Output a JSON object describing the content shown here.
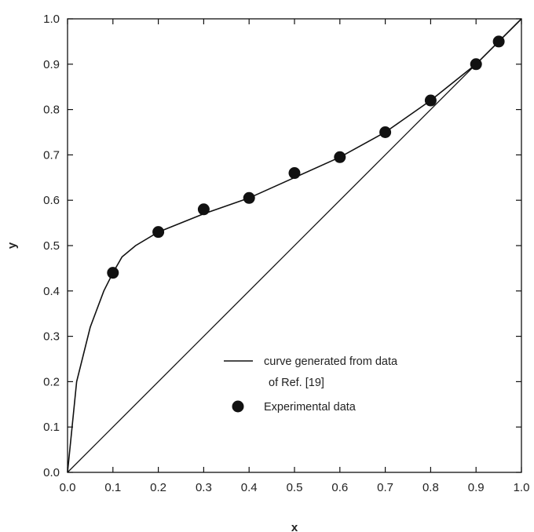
{
  "chart_data": {
    "type": "scatter",
    "xlabel": "x",
    "ylabel": "y",
    "xlim": [
      0,
      1
    ],
    "ylim": [
      0,
      1
    ],
    "xticks": [
      "0.0",
      "0.1",
      "0.2",
      "0.3",
      "0.4",
      "0.5",
      "0.6",
      "0.7",
      "0.8",
      "0.9",
      "1.0"
    ],
    "yticks": [
      "0.0",
      "0.1",
      "0.2",
      "0.3",
      "0.4",
      "0.5",
      "0.6",
      "0.7",
      "0.8",
      "0.9",
      "1.0"
    ],
    "grid": false,
    "legend_position": "bottom-right",
    "series": [
      {
        "name": "curve generated from data of Ref. [19]",
        "style": "line",
        "x": [
          0.0,
          0.01,
          0.02,
          0.05,
          0.08,
          0.1,
          0.12,
          0.15,
          0.2,
          0.3,
          0.4,
          0.5,
          0.6,
          0.7,
          0.8,
          0.9,
          0.95,
          1.0
        ],
        "y": [
          0.0,
          0.1,
          0.2,
          0.32,
          0.4,
          0.44,
          0.475,
          0.5,
          0.53,
          0.57,
          0.605,
          0.65,
          0.695,
          0.75,
          0.82,
          0.9,
          0.95,
          1.0
        ]
      },
      {
        "name": "Experimental data",
        "style": "markers",
        "x": [
          0.1,
          0.2,
          0.3,
          0.4,
          0.5,
          0.6,
          0.7,
          0.8,
          0.9,
          0.95
        ],
        "y": [
          0.44,
          0.53,
          0.58,
          0.605,
          0.66,
          0.695,
          0.75,
          0.82,
          0.9,
          0.95
        ]
      },
      {
        "name": "",
        "style": "reference-line",
        "x": [
          0.0,
          1.0
        ],
        "y": [
          0.0,
          1.0
        ]
      }
    ],
    "legend": {
      "line_label_1": "curve generated from data",
      "line_label_2": "of Ref. [19]",
      "marker_label": "Experimental data"
    },
    "colors": {
      "ink": "#111111",
      "background": "#ffffff"
    }
  }
}
